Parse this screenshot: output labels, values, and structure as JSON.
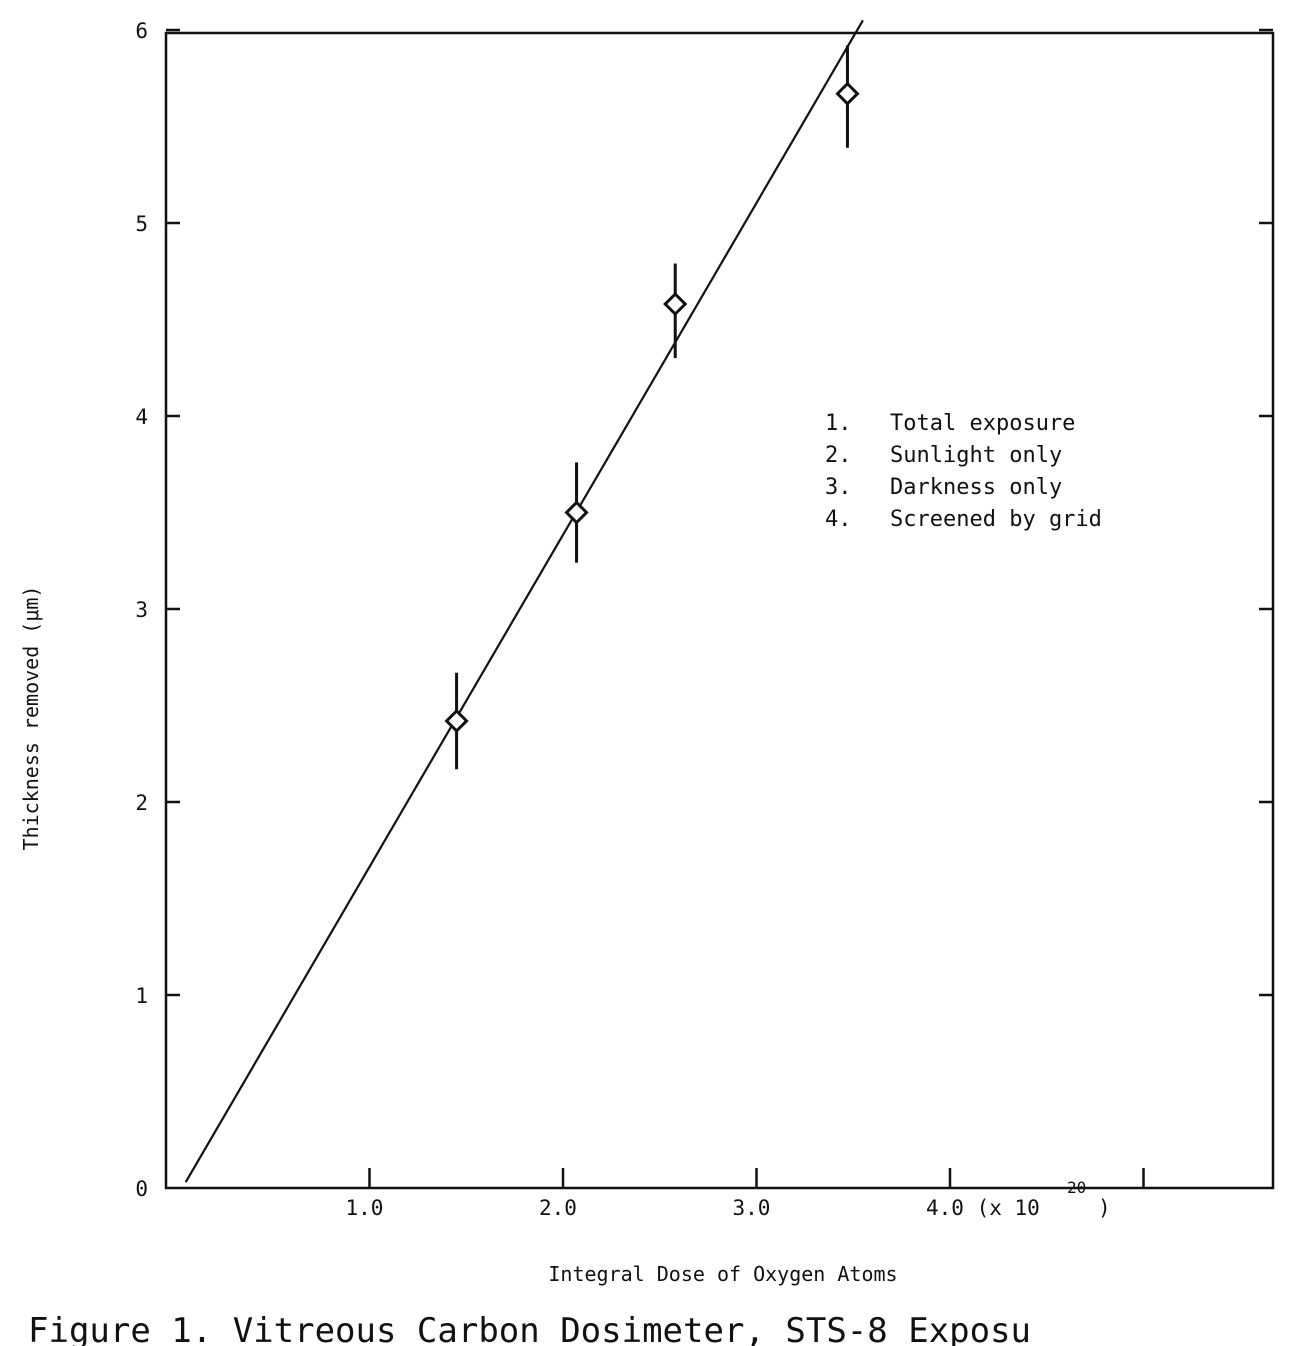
{
  "chart_data": {
    "type": "scatter",
    "xlabel": "Integral Dose of Oxygen Atoms",
    "ylabel": "Thickness removed (μm)",
    "caption": "Figure 1.  Vitreous Carbon Dosimeter, STS-8 Exposu",
    "xlim": [
      0,
      5.7
    ],
    "ylim": [
      0,
      6
    ],
    "x_ticks": [
      {
        "value": 1.0,
        "label": "1.0"
      },
      {
        "value": 2.0,
        "label": "2.0"
      },
      {
        "value": 3.0,
        "label": "3.0"
      },
      {
        "value": 4.0,
        "label": "4.0 (x 10"
      },
      {
        "value": 5.0,
        "label": ""
      }
    ],
    "x_multiplier_exponent": "20",
    "x_multiplier_close": ")",
    "y_ticks": [
      {
        "value": 0,
        "label": "0"
      },
      {
        "value": 1,
        "label": "1"
      },
      {
        "value": 2,
        "label": "2"
      },
      {
        "value": 3,
        "label": "3"
      },
      {
        "value": 4,
        "label": "4"
      },
      {
        "value": 5,
        "label": "5"
      },
      {
        "value": 6,
        "label": "6"
      }
    ],
    "points": [
      {
        "x": 1.45,
        "y": 2.42,
        "err_low": 2.17,
        "err_high": 2.67
      },
      {
        "x": 2.07,
        "y": 3.5,
        "err_low": 3.24,
        "err_high": 3.76
      },
      {
        "x": 2.58,
        "y": 4.58,
        "err_low": 4.3,
        "err_high": 4.79
      },
      {
        "x": 3.47,
        "y": 5.67,
        "err_low": 5.39,
        "err_high": 5.92
      }
    ],
    "fit_line": {
      "x": [
        0.05,
        3.55
      ],
      "y": [
        0.03,
        6.05
      ]
    },
    "legend": {
      "placement": "upper-right inside",
      "entries": [
        {
          "num": "1.",
          "label": "Total exposure"
        },
        {
          "num": "2.",
          "label": "Sunlight only"
        },
        {
          "num": "3.",
          "label": "Darkness only"
        },
        {
          "num": "4.",
          "label": "Screened by grid"
        }
      ]
    },
    "grid": false
  }
}
